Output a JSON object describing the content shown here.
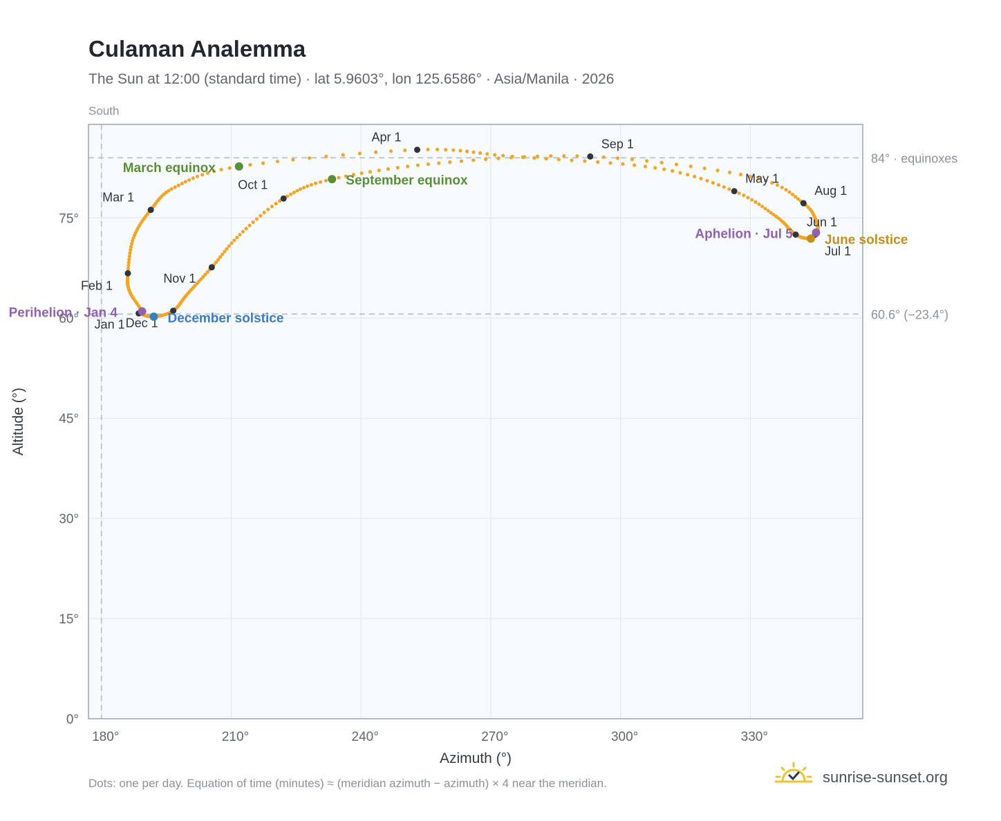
{
  "header": {
    "title": "Culaman Analemma",
    "subtitle": "The Sun at 12:00 (standard time) · lat 5.9603°, lon 125.6586° · Asia/Manila · 2026",
    "south_label": "South"
  },
  "footer": {
    "note": "Dots: one per day. Equation of time (minutes) ≈ (meridian azimuth − azimuth) × 4 near the meridian.",
    "brand": "sunrise-sunset.org"
  },
  "colors": {
    "path": "#f2a52b",
    "month_marker": "#2f3540",
    "equinox": "#5a8f35",
    "december_solstice": "#3d7cc0",
    "june_solstice": "#c58f1c",
    "apsis": "#9162b0",
    "guide": "#b8c3cd",
    "plot_bg": "#f8fbfe",
    "axis_text": "#5f6670"
  },
  "chart_data": {
    "type": "scatter",
    "title": "Culaman Analemma",
    "xlabel": "Azimuth (°)",
    "ylabel": "Altitude (°)",
    "xlim": [
      177,
      356
    ],
    "ylim": [
      0,
      89
    ],
    "x_ticks": [
      180,
      210,
      240,
      270,
      300,
      330
    ],
    "x_tick_labels": [
      "180°",
      "210°",
      "240°",
      "270°",
      "300°",
      "330°"
    ],
    "y_ticks": [
      0,
      15,
      30,
      45,
      60,
      75
    ],
    "y_tick_labels": [
      "0°",
      "15°",
      "30°",
      "45°",
      "60°",
      "75°"
    ],
    "grid": true,
    "reference_lines": [
      {
        "axis": "y",
        "value": 84,
        "label": "84° · equinoxes"
      },
      {
        "axis": "y",
        "value": 60.6,
        "label": "60.6° (−23.4°)"
      },
      {
        "axis": "x",
        "value": 180,
        "label": ""
      }
    ],
    "path_knots": [
      {
        "date": "Jan 1",
        "az": 188.6,
        "alt": 60.7
      },
      {
        "date": "Jan 4",
        "az": 189.4,
        "alt": 61.0
      },
      {
        "date": "Jan 16",
        "az": 186.5,
        "alt": 64.0
      },
      {
        "date": "Feb 1",
        "az": 186.1,
        "alt": 66.7
      },
      {
        "date": "Feb 15",
        "az": 187.4,
        "alt": 72.0
      },
      {
        "date": "Mar 1",
        "az": 191.4,
        "alt": 76.2
      },
      {
        "date": "Mar 10",
        "az": 197.0,
        "alt": 79.6
      },
      {
        "date": "Mar 20",
        "az": 211.8,
        "alt": 82.7
      },
      {
        "date": "Apr 1",
        "az": 253.0,
        "alt": 85.2
      },
      {
        "date": "Apr 10",
        "az": 275.0,
        "alt": 84.2
      },
      {
        "date": "Apr 20",
        "az": 308.0,
        "alt": 82.5
      },
      {
        "date": "May 1",
        "az": 326.3,
        "alt": 79.0
      },
      {
        "date": "May 15",
        "az": 336.0,
        "alt": 75.2
      },
      {
        "date": "Jun 1",
        "az": 340.5,
        "alt": 72.5
      },
      {
        "date": "Jun 21",
        "az": 344.0,
        "alt": 71.9
      },
      {
        "date": "Jul 1",
        "az": 345.0,
        "alt": 72.5
      },
      {
        "date": "Jul 5",
        "az": 345.2,
        "alt": 72.8
      },
      {
        "date": "Jul 15",
        "az": 345.5,
        "alt": 74.0
      },
      {
        "date": "Aug 1",
        "az": 342.3,
        "alt": 77.2
      },
      {
        "date": "Aug 15",
        "az": 330.0,
        "alt": 81.2
      },
      {
        "date": "Sep 1",
        "az": 293.0,
        "alt": 84.2
      },
      {
        "date": "Sep 10",
        "az": 258.0,
        "alt": 83.2
      },
      {
        "date": "Sep 23",
        "az": 233.3,
        "alt": 80.8
      },
      {
        "date": "Oct 1",
        "az": 222.1,
        "alt": 77.9
      },
      {
        "date": "Oct 15",
        "az": 212.0,
        "alt": 72.5
      },
      {
        "date": "Nov 1",
        "az": 205.5,
        "alt": 67.6
      },
      {
        "date": "Nov 15",
        "az": 200.0,
        "alt": 63.7
      },
      {
        "date": "Dec 1",
        "az": 196.6,
        "alt": 61.1
      },
      {
        "date": "Dec 21",
        "az": 192.1,
        "alt": 60.2
      },
      {
        "date": "Dec 31",
        "az": 188.6,
        "alt": 60.7
      }
    ],
    "month_markers": [
      {
        "label": "Jan 1",
        "az": 188.6,
        "alt": 60.7,
        "dx": -64,
        "dy": 22
      },
      {
        "label": "Feb 1",
        "az": 186.1,
        "alt": 66.7,
        "dx": -68,
        "dy": 24
      },
      {
        "label": "Mar 1",
        "az": 191.4,
        "alt": 76.2,
        "dx": -70,
        "dy": -12
      },
      {
        "label": "Apr 1",
        "az": 253.0,
        "alt": 85.2,
        "dx": -66,
        "dy": -12
      },
      {
        "label": "May 1",
        "az": 326.3,
        "alt": 79.0,
        "dx": 16,
        "dy": -12
      },
      {
        "label": "Jun 1",
        "az": 340.5,
        "alt": 72.5,
        "dx": 16,
        "dy": -12
      },
      {
        "label": "Jul 1",
        "az": 345.0,
        "alt": 72.5,
        "dx": 14,
        "dy": 30
      },
      {
        "label": "Aug 1",
        "az": 342.3,
        "alt": 77.2,
        "dx": 16,
        "dy": -12
      },
      {
        "label": "Sep 1",
        "az": 293.0,
        "alt": 84.2,
        "dx": 16,
        "dy": -12
      },
      {
        "label": "Oct 1",
        "az": 222.1,
        "alt": 77.9,
        "dx": -66,
        "dy": -14
      },
      {
        "label": "Nov 1",
        "az": 205.5,
        "alt": 67.6,
        "dx": -70,
        "dy": 22
      },
      {
        "label": "Dec 1",
        "az": 196.6,
        "alt": 61.1,
        "dx": -69,
        "dy": 24
      }
    ],
    "events": [
      {
        "label": "March equinox",
        "kind": "equinox",
        "az": 211.8,
        "alt": 82.7,
        "dx": -168,
        "dy": 8
      },
      {
        "label": "September equinox",
        "kind": "equinox",
        "az": 233.3,
        "alt": 80.8,
        "dx": 20,
        "dy": 8
      },
      {
        "label": "December solstice",
        "kind": "december_solstice",
        "az": 192.1,
        "alt": 60.2,
        "dx": 20,
        "dy": 8
      },
      {
        "label": "June solstice",
        "kind": "june_solstice",
        "az": 344.0,
        "alt": 71.9,
        "dx": 20,
        "dy": 8
      },
      {
        "label": "Perihelion · Jan 4",
        "kind": "apsis",
        "az": 189.4,
        "alt": 61.0,
        "dx": -193,
        "dy": 8
      },
      {
        "label": "Aphelion · Jul 5",
        "kind": "apsis",
        "az": 345.2,
        "alt": 72.8,
        "dx": -175,
        "dy": 8
      }
    ]
  }
}
